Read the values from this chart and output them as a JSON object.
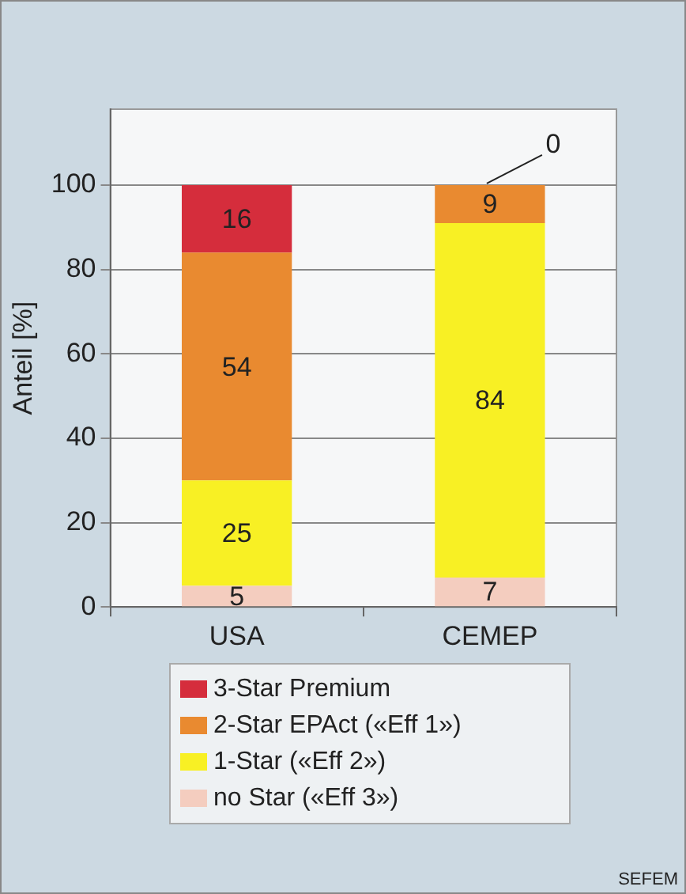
{
  "chart_data": {
    "type": "bar",
    "stacked": true,
    "ylabel": "Anteil [%]",
    "categories": [
      "USA",
      "CEMEP"
    ],
    "series": [
      {
        "name": "no Star («Eff 3»)",
        "color": "#f4cdbf",
        "values": [
          5,
          7
        ]
      },
      {
        "name": "1-Star («Eff 2»)",
        "color": "#f8f024",
        "values": [
          25,
          84
        ]
      },
      {
        "name": "2-Star EPAct («Eff 1»)",
        "color": "#e98a30",
        "values": [
          54,
          9
        ]
      },
      {
        "name": "3-Star Premium",
        "color": "#d52d3c",
        "values": [
          16,
          0
        ]
      }
    ],
    "ylim": [
      0,
      118
    ],
    "yticks": [
      0,
      20,
      40,
      60,
      80,
      100
    ],
    "grid": "y",
    "legend": "bottom",
    "data_labels": true,
    "annotations": [
      "SEFEM"
    ]
  }
}
